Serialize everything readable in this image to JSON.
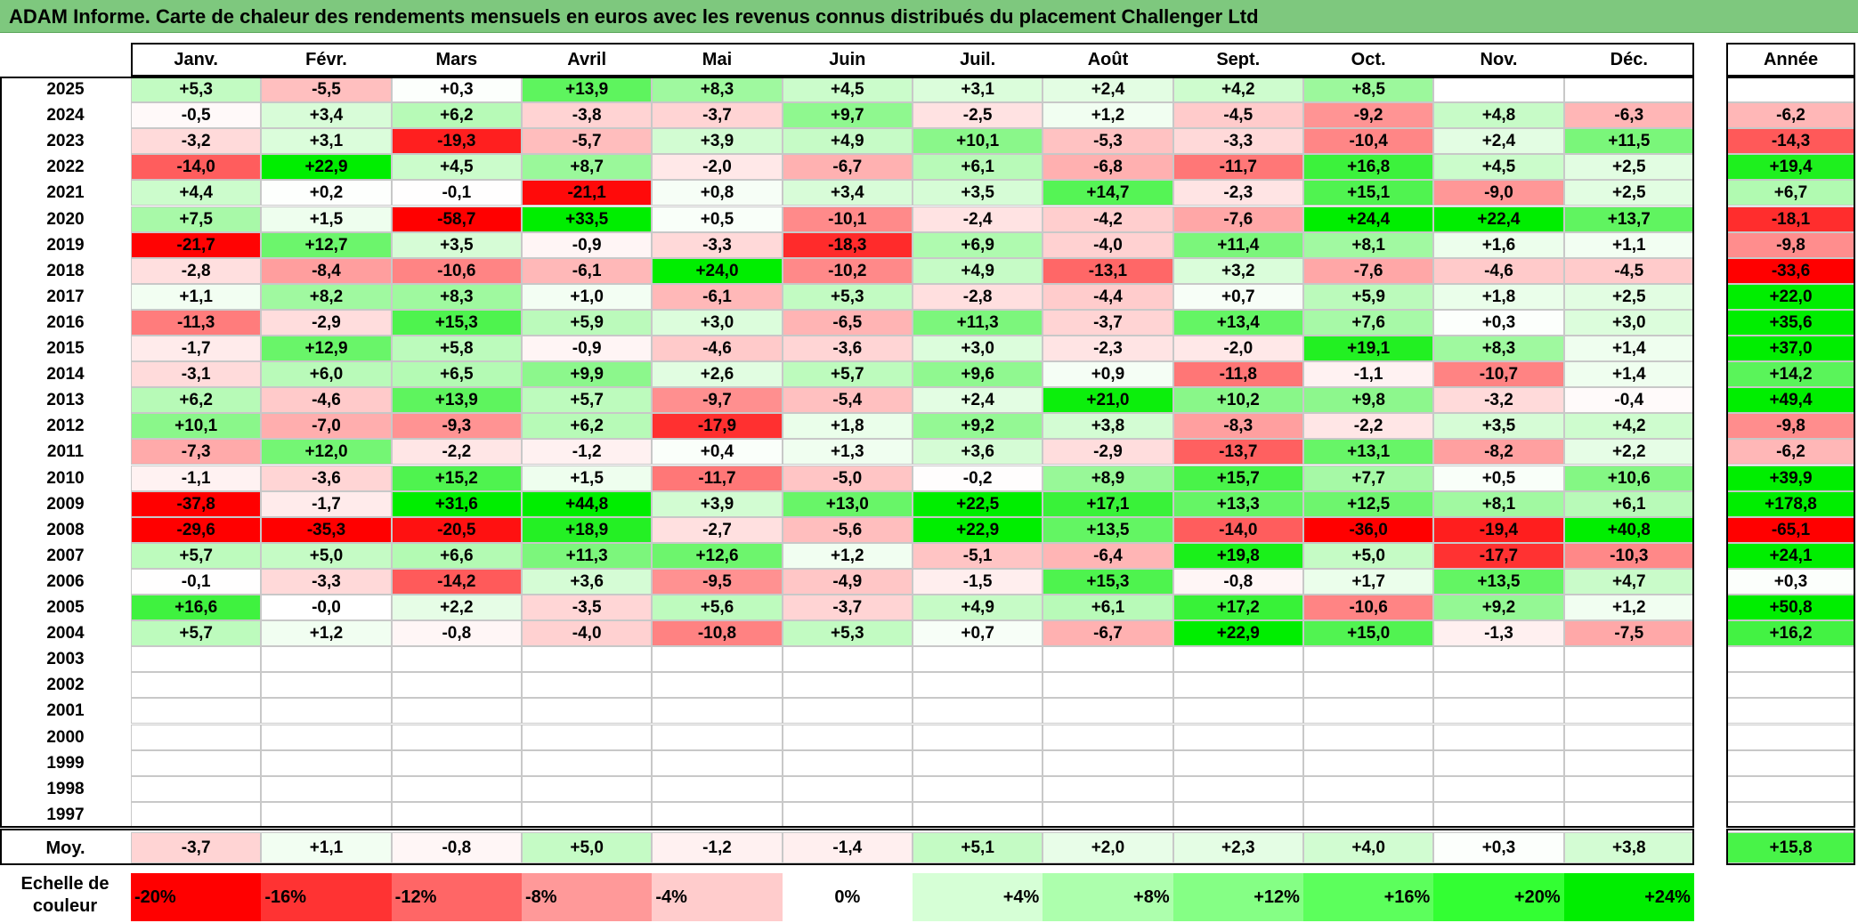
{
  "title": "ADAM Informe. Carte de chaleur des rendements mensuels en euros avec les revenus connus distribués du placement Challenger Ltd",
  "chart_data": {
    "type": "heatmap",
    "title": "ADAM Informe. Carte de chaleur des rendements mensuels en euros avec les revenus connus distribués du placement Challenger Ltd",
    "months": [
      "Janv.",
      "Févr.",
      "Mars",
      "Avril",
      "Mai",
      "Juin",
      "Juil.",
      "Août",
      "Sept.",
      "Oct.",
      "Nov.",
      "Déc."
    ],
    "year_header": "Année",
    "rows": [
      {
        "year": "2025",
        "months": [
          "+5,3",
          "-5,5",
          "+0,3",
          "+13,9",
          "+8,3",
          "+4,5",
          "+3,1",
          "+2,4",
          "+4,2",
          "+8,5",
          "",
          ""
        ],
        "year_value": ""
      },
      {
        "year": "2024",
        "months": [
          "-0,5",
          "+3,4",
          "+6,2",
          "-3,8",
          "-3,7",
          "+9,7",
          "-2,5",
          "+1,2",
          "-4,5",
          "-9,2",
          "+4,8",
          "-6,3"
        ],
        "year_value": "-6,2"
      },
      {
        "year": "2023",
        "months": [
          "-3,2",
          "+3,1",
          "-19,3",
          "-5,7",
          "+3,9",
          "+4,9",
          "+10,1",
          "-5,3",
          "-3,3",
          "-10,4",
          "+2,4",
          "+11,5"
        ],
        "year_value": "-14,3"
      },
      {
        "year": "2022",
        "months": [
          "-14,0",
          "+22,9",
          "+4,5",
          "+8,7",
          "-2,0",
          "-6,7",
          "+6,1",
          "-6,8",
          "-11,7",
          "+16,8",
          "+4,5",
          "+2,5"
        ],
        "year_value": "+19,4"
      },
      {
        "year": "2021",
        "months": [
          "+4,4",
          "+0,2",
          "-0,1",
          "-21,1",
          "+0,8",
          "+3,4",
          "+3,5",
          "+14,7",
          "-2,3",
          "+15,1",
          "-9,0",
          "+2,5"
        ],
        "year_value": "+6,7"
      },
      {
        "year": "2020",
        "months": [
          "+7,5",
          "+1,5",
          "-58,7",
          "+33,5",
          "+0,5",
          "-10,1",
          "-2,4",
          "-4,2",
          "-7,6",
          "+24,4",
          "+22,4",
          "+13,7"
        ],
        "year_value": "-18,1"
      },
      {
        "year": "2019",
        "months": [
          "-21,7",
          "+12,7",
          "+3,5",
          "-0,9",
          "-3,3",
          "-18,3",
          "+6,9",
          "-4,0",
          "+11,4",
          "+8,1",
          "+1,6",
          "+1,1"
        ],
        "year_value": "-9,8"
      },
      {
        "year": "2018",
        "months": [
          "-2,8",
          "-8,4",
          "-10,6",
          "-6,1",
          "+24,0",
          "-10,2",
          "+4,9",
          "-13,1",
          "+3,2",
          "-7,6",
          "-4,6",
          "-4,5"
        ],
        "year_value": "-33,6"
      },
      {
        "year": "2017",
        "months": [
          "+1,1",
          "+8,2",
          "+8,3",
          "+1,0",
          "-6,1",
          "+5,3",
          "-2,8",
          "-4,4",
          "+0,7",
          "+5,9",
          "+1,8",
          "+2,5"
        ],
        "year_value": "+22,0"
      },
      {
        "year": "2016",
        "months": [
          "-11,3",
          "-2,9",
          "+15,3",
          "+5,9",
          "+3,0",
          "-6,5",
          "+11,3",
          "-3,7",
          "+13,4",
          "+7,6",
          "+0,3",
          "+3,0"
        ],
        "year_value": "+35,6"
      },
      {
        "year": "2015",
        "months": [
          "-1,7",
          "+12,9",
          "+5,8",
          "-0,9",
          "-4,6",
          "-3,6",
          "+3,0",
          "-2,3",
          "-2,0",
          "+19,1",
          "+8,3",
          "+1,4"
        ],
        "year_value": "+37,0"
      },
      {
        "year": "2014",
        "months": [
          "-3,1",
          "+6,0",
          "+6,5",
          "+9,9",
          "+2,6",
          "+5,7",
          "+9,6",
          "+0,9",
          "-11,8",
          "-1,1",
          "-10,7",
          "+1,4"
        ],
        "year_value": "+14,2"
      },
      {
        "year": "2013",
        "months": [
          "+6,2",
          "-4,6",
          "+13,9",
          "+5,7",
          "-9,7",
          "-5,4",
          "+2,4",
          "+21,0",
          "+10,2",
          "+9,8",
          "-3,2",
          "-0,4"
        ],
        "year_value": "+49,4"
      },
      {
        "year": "2012",
        "months": [
          "+10,1",
          "-7,0",
          "-9,3",
          "+6,2",
          "-17,9",
          "+1,8",
          "+9,2",
          "+3,8",
          "-8,3",
          "-2,2",
          "+3,5",
          "+4,2"
        ],
        "year_value": "-9,8"
      },
      {
        "year": "2011",
        "months": [
          "-7,3",
          "+12,0",
          "-2,2",
          "-1,2",
          "+0,4",
          "+1,3",
          "+3,6",
          "-2,9",
          "-13,7",
          "+13,1",
          "-8,2",
          "+2,2"
        ],
        "year_value": "-6,2"
      },
      {
        "year": "2010",
        "months": [
          "-1,1",
          "-3,6",
          "+15,2",
          "+1,5",
          "-11,7",
          "-5,0",
          "-0,2",
          "+8,9",
          "+15,7",
          "+7,7",
          "+0,5",
          "+10,6"
        ],
        "year_value": "+39,9"
      },
      {
        "year": "2009",
        "months": [
          "-37,8",
          "-1,7",
          "+31,6",
          "+44,8",
          "+3,9",
          "+13,0",
          "+22,5",
          "+17,1",
          "+13,3",
          "+12,5",
          "+8,1",
          "+6,1"
        ],
        "year_value": "+178,8"
      },
      {
        "year": "2008",
        "months": [
          "-29,6",
          "-35,3",
          "-20,5",
          "+18,9",
          "-2,7",
          "-5,6",
          "+22,9",
          "+13,5",
          "-14,0",
          "-36,0",
          "-19,4",
          "+40,8"
        ],
        "year_value": "-65,1"
      },
      {
        "year": "2007",
        "months": [
          "+5,7",
          "+5,0",
          "+6,6",
          "+11,3",
          "+12,6",
          "+1,2",
          "-5,1",
          "-6,4",
          "+19,8",
          "+5,0",
          "-17,7",
          "-10,3"
        ],
        "year_value": "+24,1"
      },
      {
        "year": "2006",
        "months": [
          "-0,1",
          "-3,3",
          "-14,2",
          "+3,6",
          "-9,5",
          "-4,9",
          "-1,5",
          "+15,3",
          "-0,8",
          "+1,7",
          "+13,5",
          "+4,7"
        ],
        "year_value": "+0,3"
      },
      {
        "year": "2005",
        "months": [
          "+16,6",
          "-0,0",
          "+2,2",
          "-3,5",
          "+5,6",
          "-3,7",
          "+4,9",
          "+6,1",
          "+17,2",
          "-10,6",
          "+9,2",
          "+1,2"
        ],
        "year_value": "+50,8"
      },
      {
        "year": "2004",
        "months": [
          "+5,7",
          "+1,2",
          "-0,8",
          "-4,0",
          "-10,8",
          "+5,3",
          "+0,7",
          "-6,7",
          "+22,9",
          "+15,0",
          "-1,3",
          "-7,5"
        ],
        "year_value": "+16,2"
      },
      {
        "year": "2003",
        "months": [
          "",
          "",
          "",
          "",
          "",
          "",
          "",
          "",
          "",
          "",
          "",
          ""
        ],
        "year_value": ""
      },
      {
        "year": "2002",
        "months": [
          "",
          "",
          "",
          "",
          "",
          "",
          "",
          "",
          "",
          "",
          "",
          ""
        ],
        "year_value": ""
      },
      {
        "year": "2001",
        "months": [
          "",
          "",
          "",
          "",
          "",
          "",
          "",
          "",
          "",
          "",
          "",
          ""
        ],
        "year_value": ""
      },
      {
        "year": "2000",
        "months": [
          "",
          "",
          "",
          "",
          "",
          "",
          "",
          "",
          "",
          "",
          "",
          ""
        ],
        "year_value": ""
      },
      {
        "year": "1999",
        "months": [
          "",
          "",
          "",
          "",
          "",
          "",
          "",
          "",
          "",
          "",
          "",
          ""
        ],
        "year_value": ""
      },
      {
        "year": "1998",
        "months": [
          "",
          "",
          "",
          "",
          "",
          "",
          "",
          "",
          "",
          "",
          "",
          ""
        ],
        "year_value": ""
      },
      {
        "year": "1997",
        "months": [
          "",
          "",
          "",
          "",
          "",
          "",
          "",
          "",
          "",
          "",
          "",
          ""
        ],
        "year_value": ""
      }
    ],
    "average": {
      "label": "Moy.",
      "months": [
        "-3,7",
        "+1,1",
        "-0,8",
        "+5,0",
        "-1,2",
        "-1,4",
        "+5,1",
        "+2,0",
        "+2,3",
        "+4,0",
        "+0,3",
        "+3,8"
      ],
      "year_value": "+15,8"
    },
    "scale": {
      "label_line1": "Echelle de",
      "label_line2": "couleur",
      "steps": [
        {
          "label": "-20%",
          "value": -20,
          "color": "#ff0000"
        },
        {
          "label": "-16%",
          "value": -16,
          "color": "#ff3333"
        },
        {
          "label": "-12%",
          "value": -12,
          "color": "#ff6666"
        },
        {
          "label": "-8%",
          "value": -8,
          "color": "#ff9999"
        },
        {
          "label": "-4%",
          "value": -4,
          "color": "#ffcccc"
        },
        {
          "label": "0%",
          "value": 0,
          "color": "#ffffff"
        },
        {
          "label": "+4%",
          "value": 4,
          "color": "#d6ffd6"
        },
        {
          "label": "+8%",
          "value": 8,
          "color": "#adffad"
        },
        {
          "label": "+12%",
          "value": 12,
          "color": "#85ff85"
        },
        {
          "label": "+16%",
          "value": 16,
          "color": "#5cff5c"
        },
        {
          "label": "+20%",
          "value": 20,
          "color": "#33ff33"
        },
        {
          "label": "+24%",
          "value": 24,
          "color": "#00ee00"
        }
      ]
    }
  },
  "colors": {
    "title_bg": "#7ec87e",
    "negative_max": "#ff0000",
    "positive_max": "#00ee00",
    "neutral": "#ffffff"
  }
}
